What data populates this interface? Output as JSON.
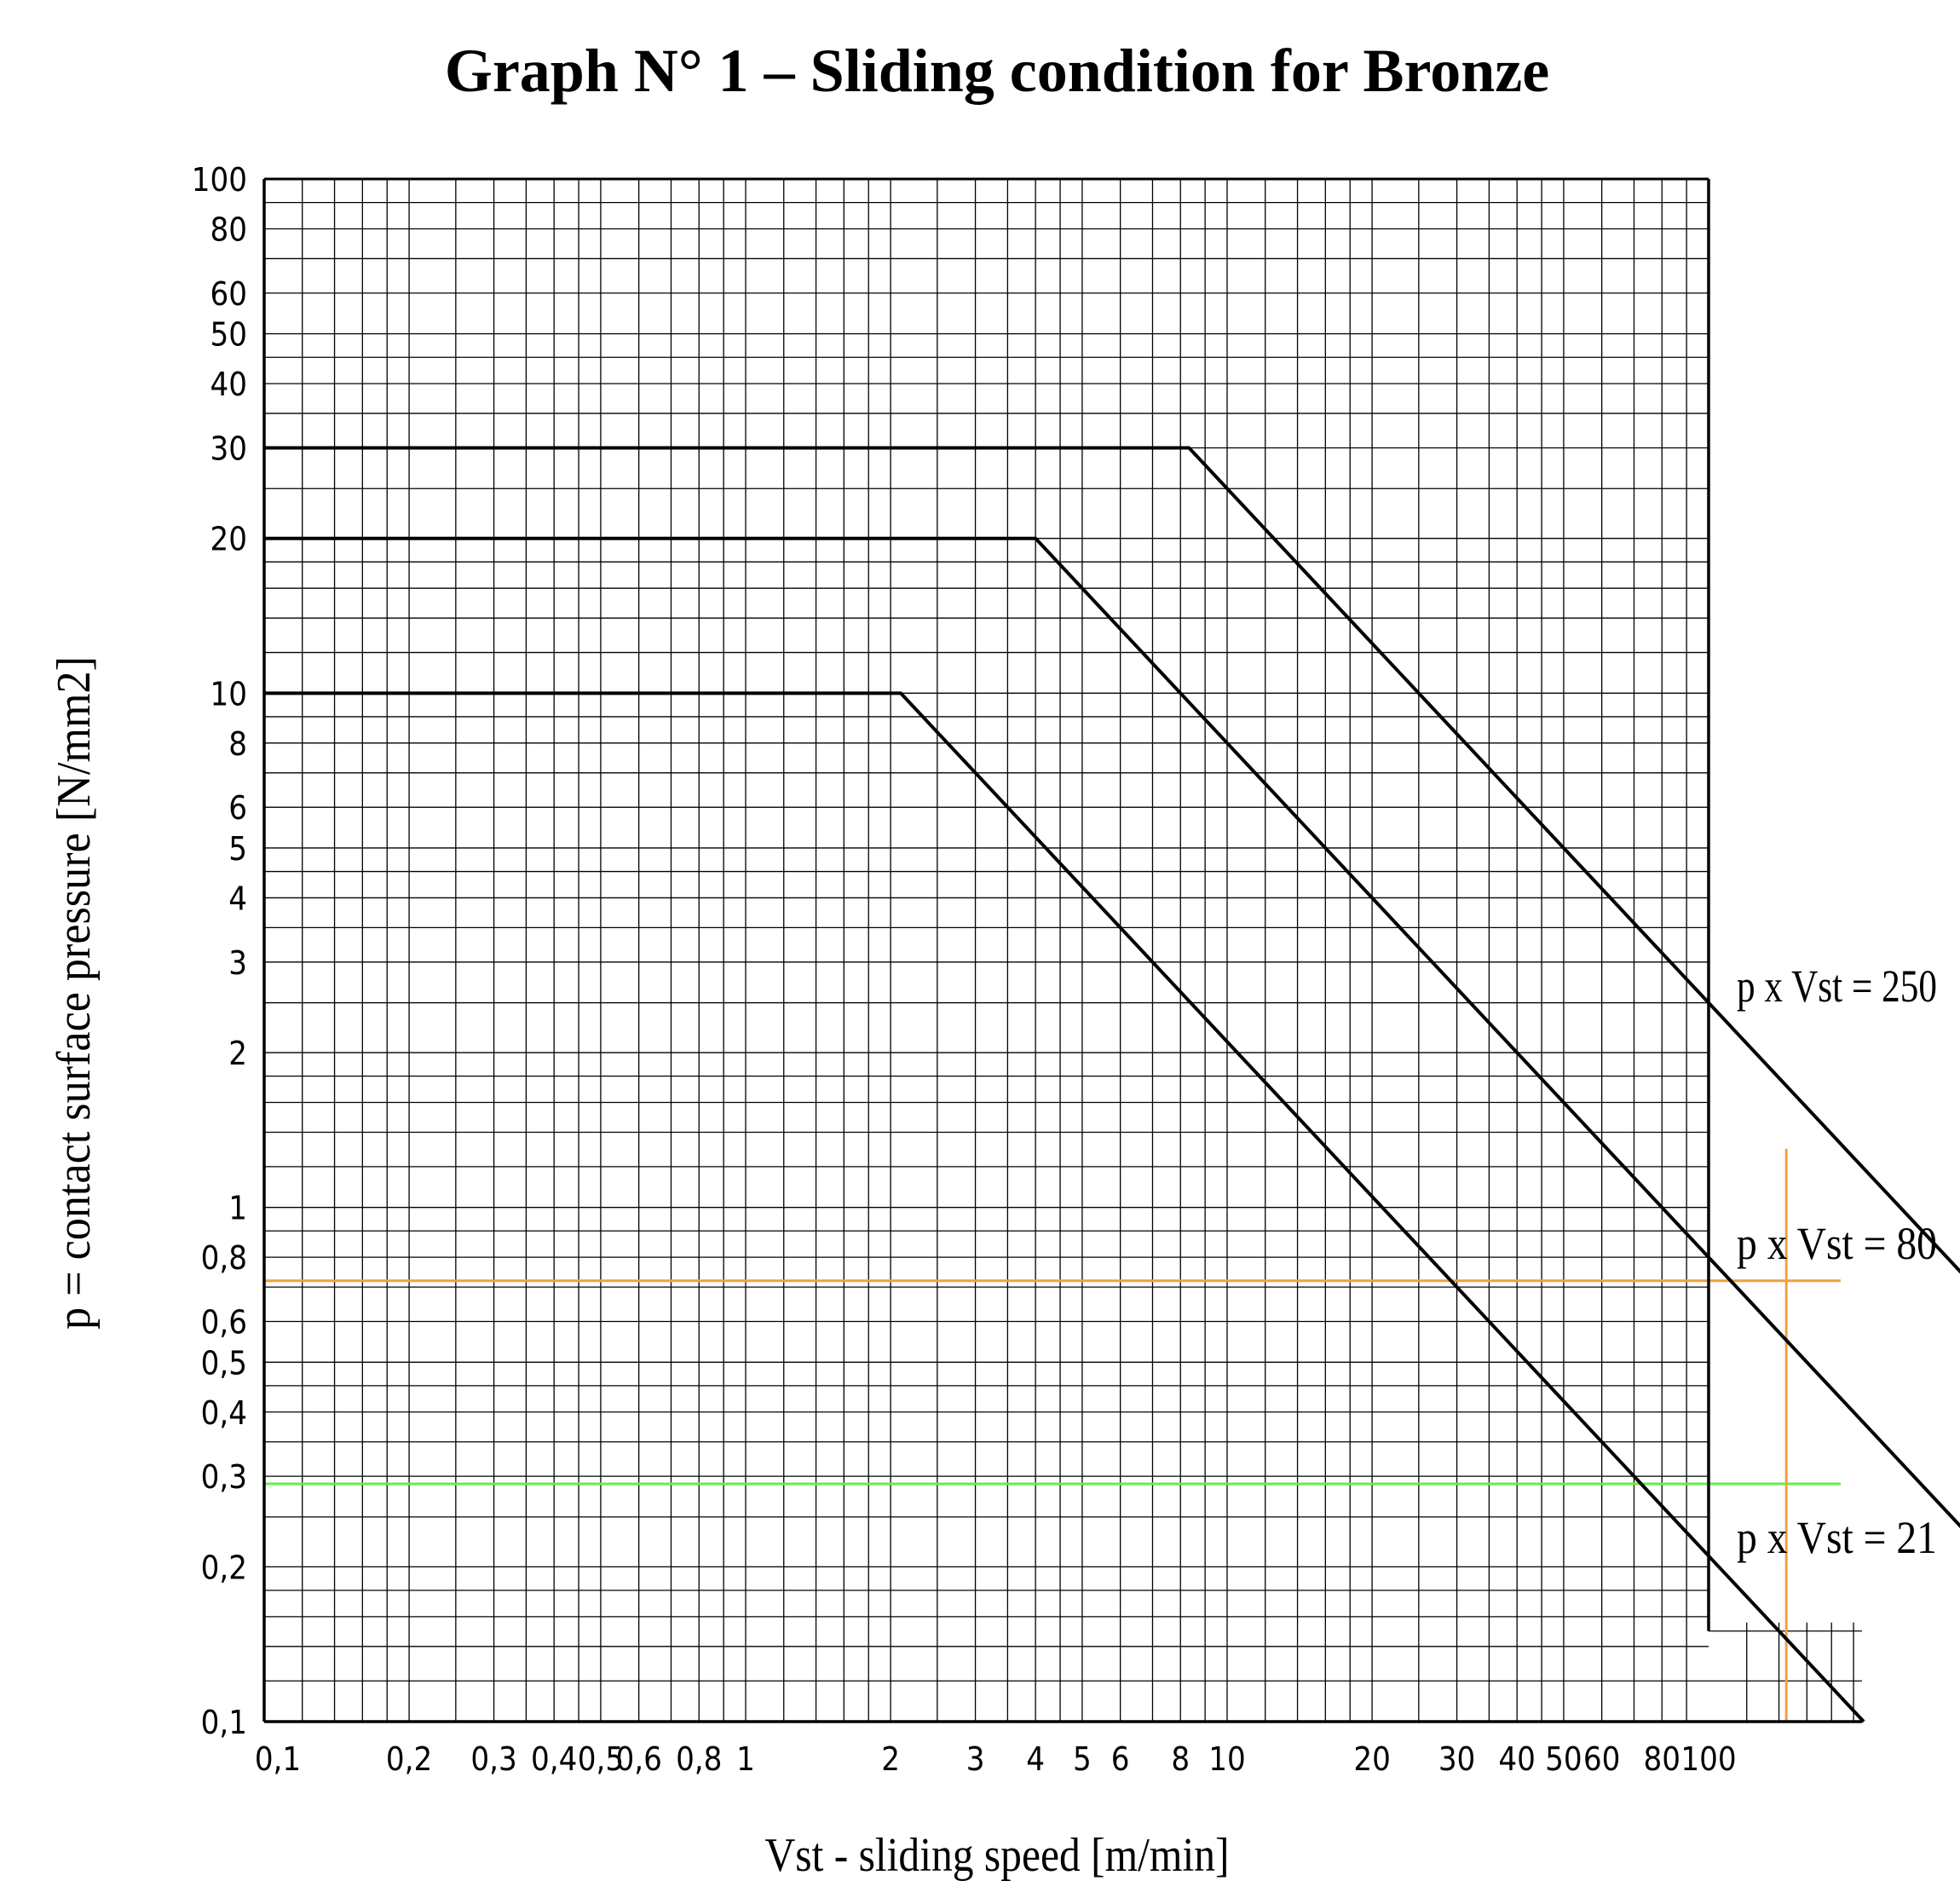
{
  "chart_data": {
    "type": "line",
    "title": "Graph N° 1 – Sliding condition for Bronze",
    "xlabel": "Vst - sliding speed [m/min]",
    "ylabel": "p = contact surface pressure [N/mm2]",
    "x_scale": "log",
    "y_scale": "log",
    "xlim": [
      0.1,
      100
    ],
    "ylim": [
      0.1,
      100
    ],
    "grid": true,
    "x_ticks": [
      {
        "value": 0.1,
        "label": "0,1"
      },
      {
        "value": 0.2,
        "label": "0,2"
      },
      {
        "value": 0.3,
        "label": "0,3"
      },
      {
        "value": 0.4,
        "label": "0,4"
      },
      {
        "value": 0.5,
        "label": "0,5"
      },
      {
        "value": 0.6,
        "label": "0,6"
      },
      {
        "value": 0.8,
        "label": "0,8"
      },
      {
        "value": 1,
        "label": "1"
      },
      {
        "value": 2,
        "label": "2"
      },
      {
        "value": 3,
        "label": "3"
      },
      {
        "value": 4,
        "label": "4"
      },
      {
        "value": 5,
        "label": "5"
      },
      {
        "value": 6,
        "label": "6"
      },
      {
        "value": 8,
        "label": "8"
      },
      {
        "value": 10,
        "label": "10"
      },
      {
        "value": 20,
        "label": "20"
      },
      {
        "value": 30,
        "label": "30"
      },
      {
        "value": 40,
        "label": "40"
      },
      {
        "value": 50,
        "label": "50"
      },
      {
        "value": 60,
        "label": "60"
      },
      {
        "value": 80,
        "label": "80"
      },
      {
        "value": 100,
        "label": "100"
      }
    ],
    "y_ticks": [
      {
        "value": 0.1,
        "label": "0,1"
      },
      {
        "value": 0.2,
        "label": "0,2"
      },
      {
        "value": 0.3,
        "label": "0,3"
      },
      {
        "value": 0.4,
        "label": "0,4"
      },
      {
        "value": 0.5,
        "label": "0,5"
      },
      {
        "value": 0.6,
        "label": "0,6"
      },
      {
        "value": 0.8,
        "label": "0,8"
      },
      {
        "value": 1,
        "label": "1"
      },
      {
        "value": 2,
        "label": "2"
      },
      {
        "value": 3,
        "label": "3"
      },
      {
        "value": 4,
        "label": "4"
      },
      {
        "value": 5,
        "label": "5"
      },
      {
        "value": 6,
        "label": "6"
      },
      {
        "value": 8,
        "label": "8"
      },
      {
        "value": 10,
        "label": "10"
      },
      {
        "value": 20,
        "label": "20"
      },
      {
        "value": 30,
        "label": "30"
      },
      {
        "value": 40,
        "label": "40"
      },
      {
        "value": 50,
        "label": "50"
      },
      {
        "value": 60,
        "label": "60"
      },
      {
        "value": 80,
        "label": "80"
      },
      {
        "value": 100,
        "label": "100"
      }
    ],
    "series": [
      {
        "name": "p x Vst = 250",
        "p_max": 30,
        "x_end": 350,
        "color": "#000000"
      },
      {
        "name": "p x Vst = 80",
        "p_max": 20,
        "x_end": 380,
        "color": "#000000"
      },
      {
        "name": "p x Vst = 21",
        "p_max": 10,
        "x_end": 210,
        "color": "#000000"
      }
    ],
    "reference_lines": [
      {
        "orientation": "horizontal",
        "y": 0.72,
        "color": "#f0a040"
      },
      {
        "orientation": "horizontal",
        "y": 0.29,
        "color": "#66ee44"
      },
      {
        "orientation": "vertical",
        "x": 145,
        "color": "#f0a040"
      }
    ]
  }
}
